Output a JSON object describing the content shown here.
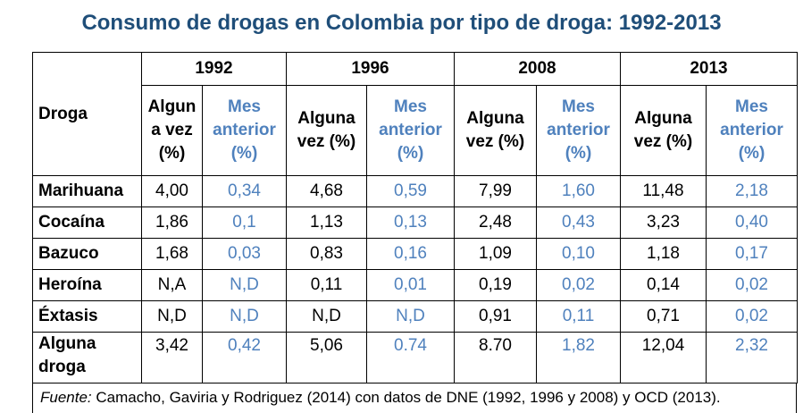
{
  "title": "Consumo de drogas en Colombia por tipo de droga: 1992-2013",
  "table": {
    "row_header": "Droga",
    "years": [
      "1992",
      "1996",
      "2008",
      "2013"
    ],
    "subheaders": [
      {
        "alguna": "Algun a vez (%)",
        "mes": "Mes anterior (%)"
      },
      {
        "alguna": "Alguna vez (%)",
        "mes": "Mes anterior (%)"
      },
      {
        "alguna": "Alguna vez (%)",
        "mes": "Mes anterior (%)"
      },
      {
        "alguna": "Alguna vez (%)",
        "mes": "Mes anterior (%)"
      }
    ],
    "rows": [
      {
        "label": "Marihuana",
        "values": [
          "4,00",
          "0,34",
          "4,68",
          "0,59",
          "7,99",
          "1,60",
          "11,48",
          "2,18"
        ]
      },
      {
        "label": "Cocaína",
        "values": [
          "1,86",
          "0,1",
          "1,13",
          "0,13",
          "2,48",
          "0,43",
          "3,23",
          "0,40"
        ]
      },
      {
        "label": "Bazuco",
        "values": [
          "1,68",
          "0,03",
          "0,83",
          "0,16",
          "1,09",
          "0,10",
          "1,18",
          "0,17"
        ]
      },
      {
        "label": "Heroína",
        "values": [
          "N,A",
          "N,D",
          "0,11",
          "0,01",
          "0,19",
          "0,02",
          "0,14",
          "0,02"
        ]
      },
      {
        "label": "Éxtasis",
        "values": [
          "N,D",
          "N,D",
          "N,D",
          "N,D",
          "0,91",
          "0,11",
          "0,71",
          "0,02"
        ]
      },
      {
        "label": "Alguna droga",
        "values": [
          "3,42",
          "0,42",
          "5,06",
          "0.74",
          "8.70",
          "1,82",
          "12,04",
          "2,32"
        ]
      }
    ]
  },
  "source": {
    "prefix": "Fuente:",
    "text": " Camacho, Gaviria y Rodriguez (2014) con datos de DNE (1992, 1996 y 2008) y OCD (2013)."
  },
  "colors": {
    "title": "#1f4e79",
    "accent_blue": "#4f81bd"
  }
}
